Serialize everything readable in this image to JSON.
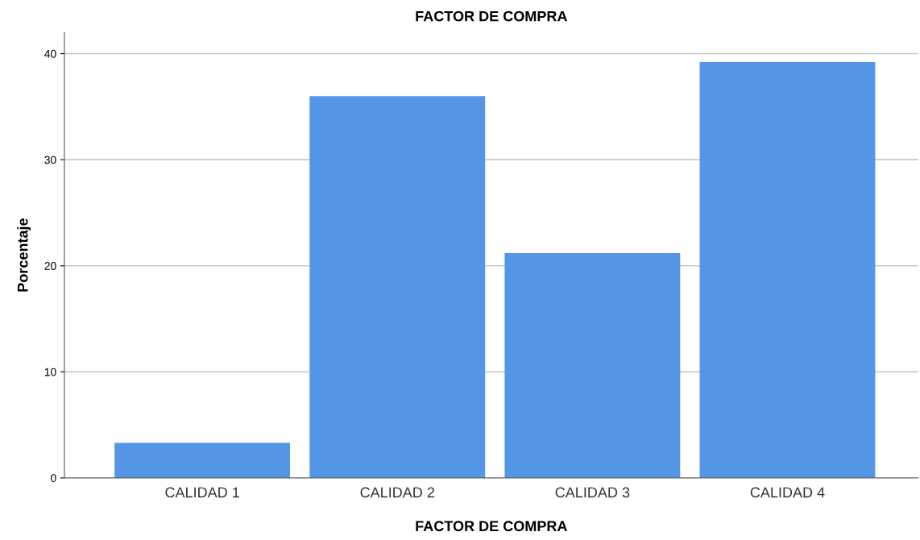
{
  "chart_data": {
    "type": "bar",
    "title": "FACTOR DE COMPRA",
    "xlabel": "FACTOR DE COMPRA",
    "ylabel": "Porcentaje",
    "categories": [
      "CALIDAD 1",
      "CALIDAD 2",
      "CALIDAD 3",
      "CALIDAD 4"
    ],
    "values": [
      3.3,
      36.0,
      21.2,
      39.2
    ],
    "color": "#5596e6",
    "ylim": [
      0,
      42
    ],
    "yticks": [
      0,
      10,
      20,
      30,
      40
    ],
    "grid": "y",
    "legend": false
  }
}
